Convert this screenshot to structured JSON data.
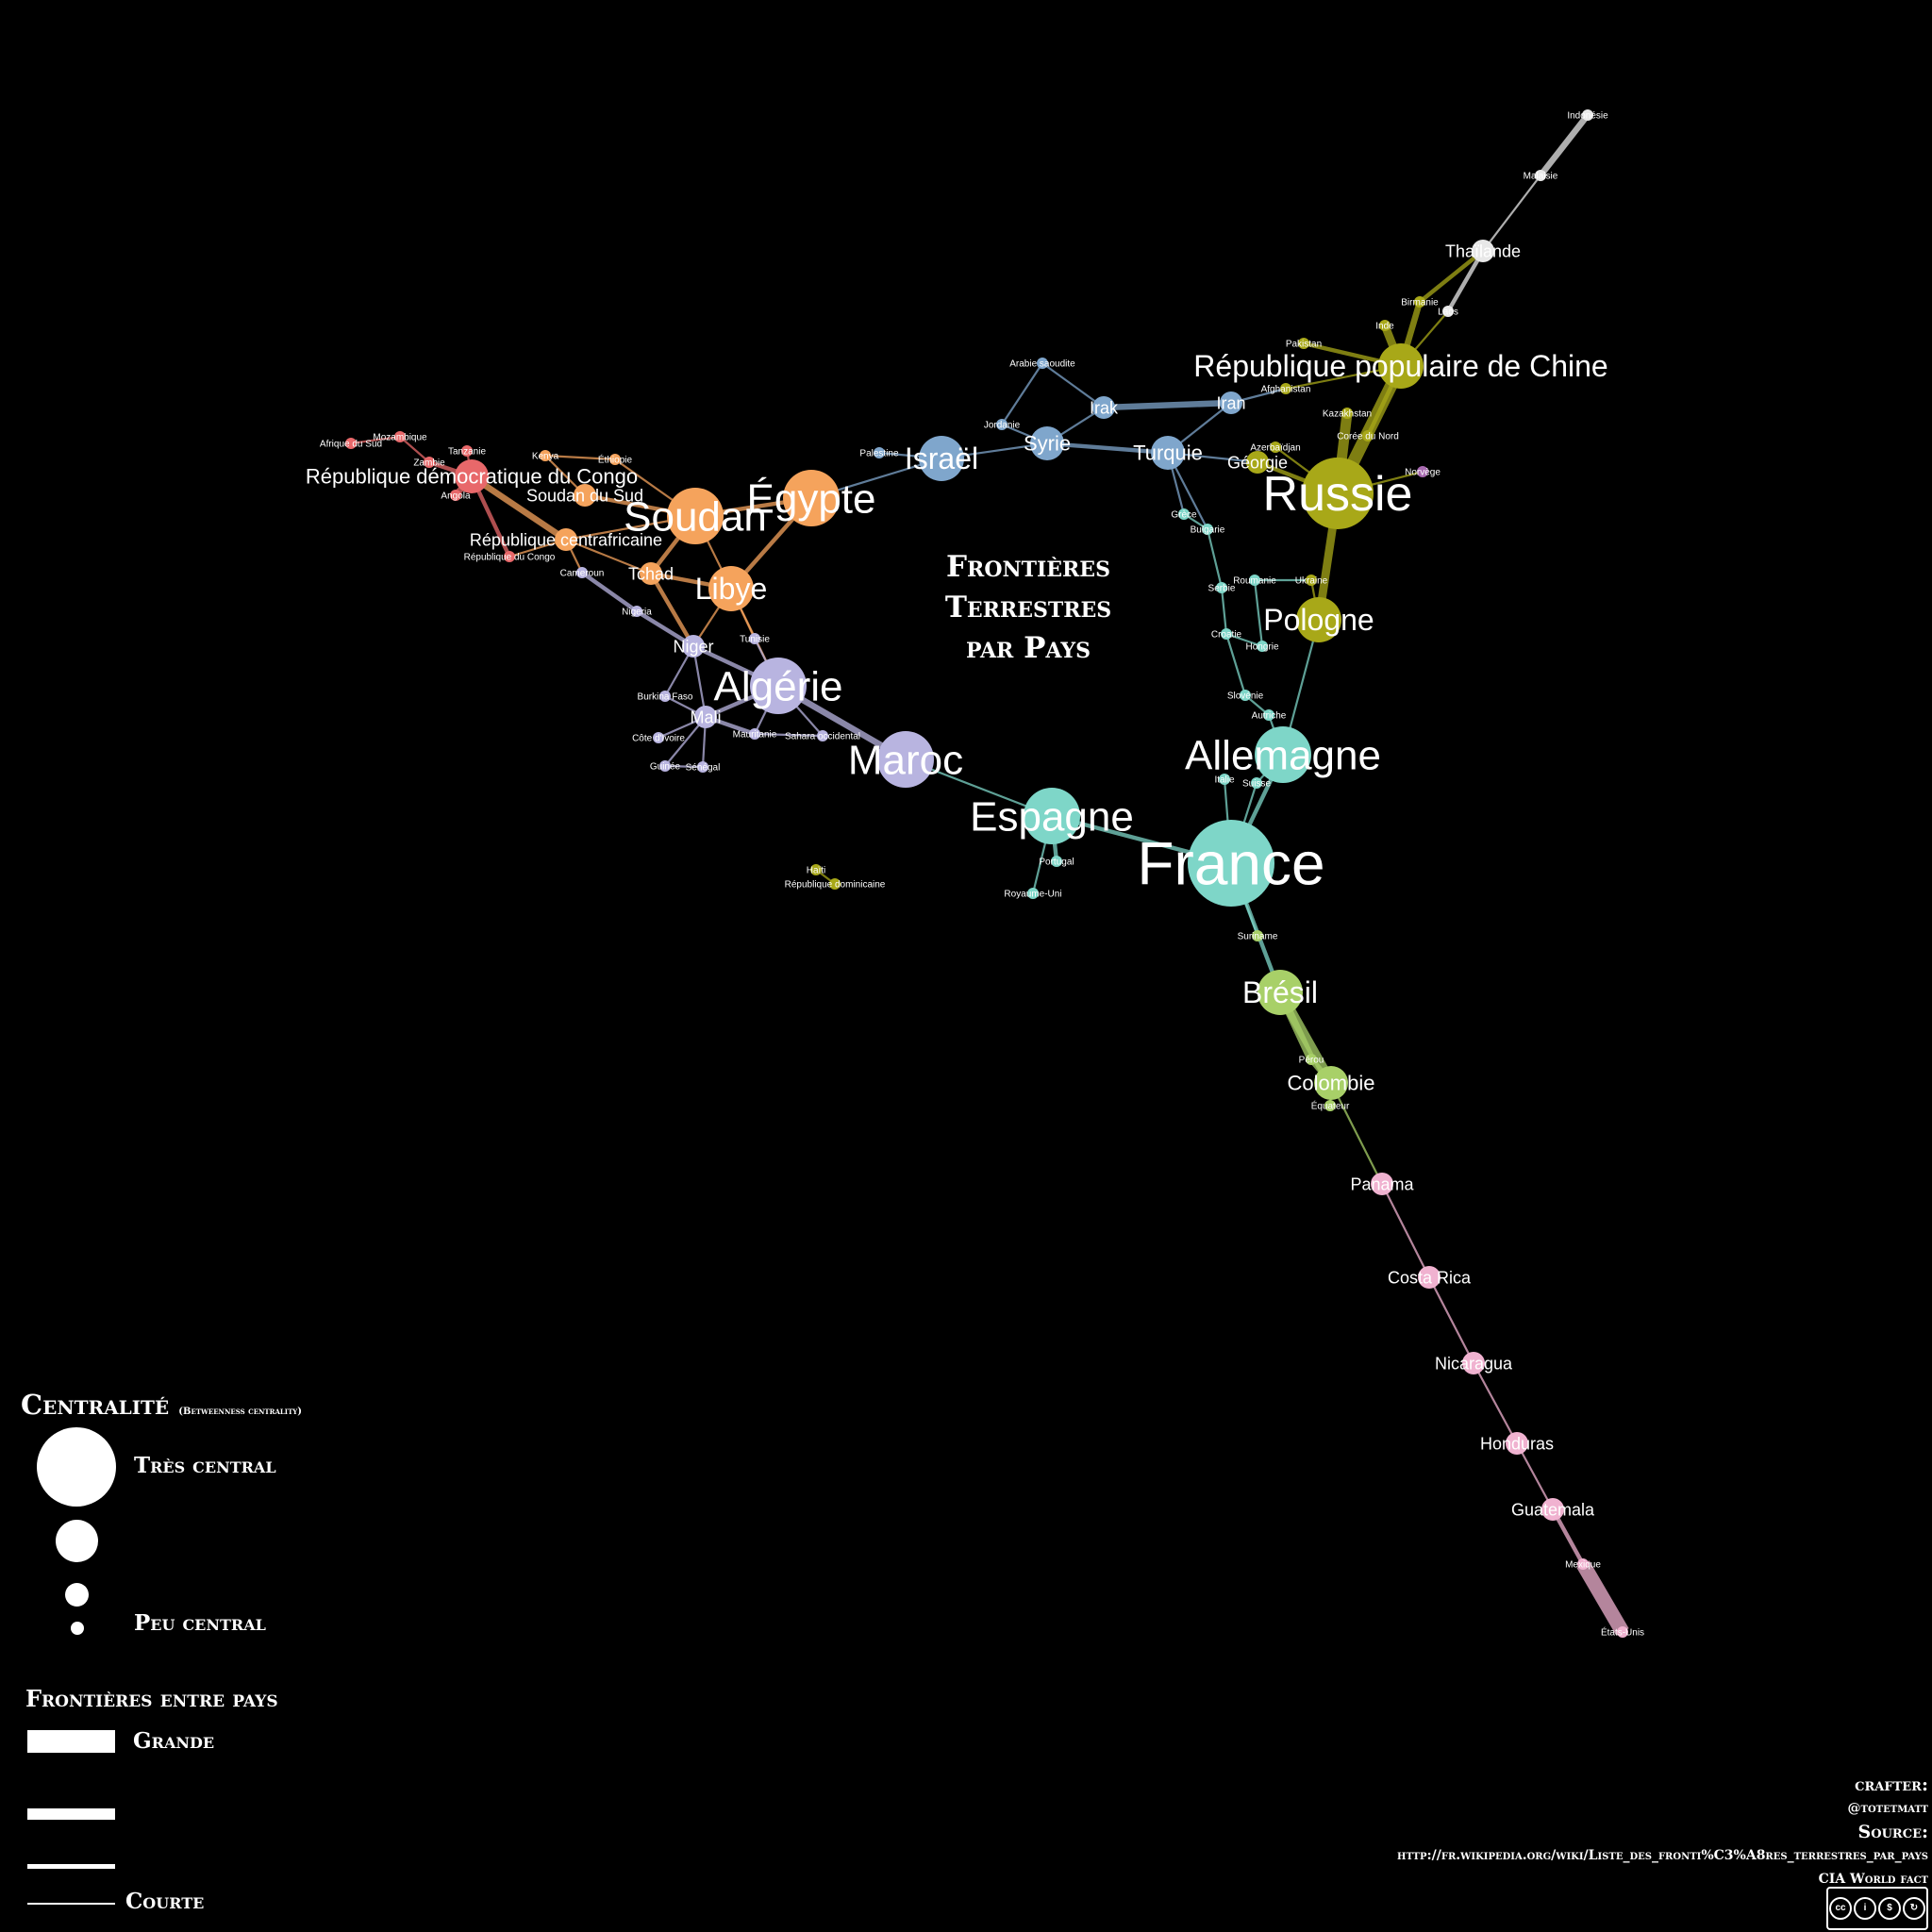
{
  "title": {
    "line1": "Frontières",
    "line2": "Terrestres",
    "line3": "par Pays"
  },
  "legend": {
    "centrality_title": "Centralité",
    "centrality_note": "(Betweenness centrality)",
    "high_label": "Très central",
    "low_label": "Peu central",
    "borders_title": "Frontières entre pays",
    "long_label": "Grande",
    "short_label": "Courte"
  },
  "credits": {
    "crafter_label": "crafter:",
    "crafter": "@totetmatt",
    "source_label": "Source:",
    "source_url": "http://fr.wikipedia.org/wiki/Liste_des_fronti%C3%A8res_terrestres_par_pays",
    "source_2": "CIA World fact",
    "license": "BY NC SA"
  },
  "colors": {
    "background": "#000000",
    "africa_central": "#f5a35c",
    "africa_south": "#e8686a",
    "africa_west": "#b8b4e0",
    "middle_east": "#7fa6cc",
    "eurasia": "#a8a818",
    "europe": "#7ed6c8",
    "south_america": "#a8d068",
    "central_america": "#f0b2d0",
    "south_east_asia": "#e8e8e8",
    "nordic": "#a86ab0"
  },
  "nodes": [
    {
      "id": "France",
      "label": "France",
      "group": "europe",
      "size": 7
    },
    {
      "id": "Espagne",
      "label": "Espagne",
      "group": "europe",
      "size": 5
    },
    {
      "id": "Allemagne",
      "label": "Allemagne",
      "group": "europe",
      "size": 5
    },
    {
      "id": "Russie",
      "label": "Russie",
      "group": "eurasia",
      "size": 6
    },
    {
      "id": "Chine",
      "label": "République populaire de Chine",
      "group": "eurasia",
      "size": 4
    },
    {
      "id": "Pologne",
      "label": "Pologne",
      "group": "eurasia",
      "size": 4
    },
    {
      "id": "Turquie",
      "label": "Turquie",
      "group": "middle_east",
      "size": 3
    },
    {
      "id": "Syrie",
      "label": "Syrie",
      "group": "middle_east",
      "size": 3
    },
    {
      "id": "Israel",
      "label": "Israël",
      "group": "middle_east",
      "size": 4
    },
    {
      "id": "Irak",
      "label": "Irak",
      "group": "middle_east",
      "size": 2
    },
    {
      "id": "Iran",
      "label": "Iran",
      "group": "middle_east",
      "size": 2
    },
    {
      "id": "Arabie",
      "label": "Arabie saoudite",
      "group": "middle_east",
      "size": 1
    },
    {
      "id": "Jordanie",
      "label": "Jordanie",
      "group": "middle_east",
      "size": 1
    },
    {
      "id": "Palestine",
      "label": "Palestine",
      "group": "middle_east",
      "size": 1
    },
    {
      "id": "Egypte",
      "label": "Égypte",
      "group": "africa_central",
      "size": 5
    },
    {
      "id": "Soudan",
      "label": "Soudan",
      "group": "africa_central",
      "size": 5
    },
    {
      "id": "Libye",
      "label": "Libye",
      "group": "africa_central",
      "size": 4
    },
    {
      "id": "Tchad",
      "label": "Tchad",
      "group": "africa_central",
      "size": 2
    },
    {
      "id": "SoudanSud",
      "label": "Soudan du Sud",
      "group": "africa_central",
      "size": 2
    },
    {
      "id": "RCA",
      "label": "République centrafricaine",
      "group": "africa_central",
      "size": 2
    },
    {
      "id": "RDC",
      "label": "République démocratique du Congo",
      "group": "africa_south",
      "size": 3
    },
    {
      "id": "Congo",
      "label": "République du Congo",
      "group": "africa_south",
      "size": 1
    },
    {
      "id": "Tanzanie",
      "label": "Tanzanie",
      "group": "africa_south",
      "size": 1
    },
    {
      "id": "Zambie",
      "label": "Zambie",
      "group": "africa_south",
      "size": 1
    },
    {
      "id": "Mozambique",
      "label": "Mozambique",
      "group": "africa_south",
      "size": 1
    },
    {
      "id": "AfriqueSud",
      "label": "Afrique du Sud",
      "group": "africa_south",
      "size": 1
    },
    {
      "id": "Angola",
      "label": "Angola",
      "group": "africa_south",
      "size": 1
    },
    {
      "id": "Ethiopie",
      "label": "Éthiopie",
      "group": "africa_central",
      "size": 1
    },
    {
      "id": "Kenya",
      "label": "Kenya",
      "group": "africa_central",
      "size": 1
    },
    {
      "id": "Cameroun",
      "label": "Cameroun",
      "group": "africa_west",
      "size": 1
    },
    {
      "id": "Nigeria",
      "label": "Nigeria",
      "group": "africa_west",
      "size": 1
    },
    {
      "id": "Niger",
      "label": "Niger",
      "group": "africa_west",
      "size": 2
    },
    {
      "id": "Algerie",
      "label": "Algérie",
      "group": "africa_west",
      "size": 5
    },
    {
      "id": "Maroc",
      "label": "Maroc",
      "group": "africa_west",
      "size": 5
    },
    {
      "id": "Mali",
      "label": "Mali",
      "group": "africa_west",
      "size": 2
    },
    {
      "id": "Burkina",
      "label": "Burkina Faso",
      "group": "africa_west",
      "size": 1
    },
    {
      "id": "Cote",
      "label": "Côte d'Ivoire",
      "group": "africa_west",
      "size": 1
    },
    {
      "id": "Guinee",
      "label": "Guinée",
      "group": "africa_west",
      "size": 1
    },
    {
      "id": "Senegal",
      "label": "Sénégal",
      "group": "africa_west",
      "size": 1
    },
    {
      "id": "Mauritanie",
      "label": "Mauritanie",
      "group": "africa_west",
      "size": 1
    },
    {
      "id": "Sahara",
      "label": "Sahara occidental",
      "group": "africa_west",
      "size": 1
    },
    {
      "id": "Tunisie",
      "label": "Tunisie",
      "group": "africa_west",
      "size": 1
    },
    {
      "id": "RoyaumeUni",
      "label": "Royaume-Uni",
      "group": "europe",
      "size": 1
    },
    {
      "id": "Portugal",
      "label": "Portugal",
      "group": "europe",
      "size": 1
    },
    {
      "id": "Italie",
      "label": "Italie",
      "group": "europe",
      "size": 1
    },
    {
      "id": "Suisse",
      "label": "Suisse",
      "group": "europe",
      "size": 1
    },
    {
      "id": "Autriche",
      "label": "Autriche",
      "group": "europe",
      "size": 1
    },
    {
      "id": "Slovenie",
      "label": "Slovénie",
      "group": "europe",
      "size": 1
    },
    {
      "id": "Hongrie",
      "label": "Hongrie",
      "group": "europe",
      "size": 1
    },
    {
      "id": "Croatie",
      "label": "Croatie",
      "group": "europe",
      "size": 1
    },
    {
      "id": "Serbie",
      "label": "Serbie",
      "group": "europe",
      "size": 1
    },
    {
      "id": "Roumanie",
      "label": "Roumanie",
      "group": "europe",
      "size": 1
    },
    {
      "id": "Bulgarie",
      "label": "Bulgarie",
      "group": "europe",
      "size": 1
    },
    {
      "id": "Grece",
      "label": "Grèce",
      "group": "europe",
      "size": 1
    },
    {
      "id": "Ukraine",
      "label": "Ukraine",
      "group": "eurasia",
      "size": 1
    },
    {
      "id": "Georgie",
      "label": "Géorgie",
      "group": "eurasia",
      "size": 2
    },
    {
      "id": "Azerbaidjan",
      "label": "Azerbaïdjan",
      "group": "eurasia",
      "size": 1
    },
    {
      "id": "Kazakhstan",
      "label": "Kazakhstan",
      "group": "eurasia",
      "size": 1
    },
    {
      "id": "Afghanistan",
      "label": "Afghanistan",
      "group": "eurasia",
      "size": 1
    },
    {
      "id": "Pakistan",
      "label": "Pakistan",
      "group": "eurasia",
      "size": 1
    },
    {
      "id": "Inde",
      "label": "Inde",
      "group": "eurasia",
      "size": 1
    },
    {
      "id": "Birmanie",
      "label": "Birmanie",
      "group": "eurasia",
      "size": 1
    },
    {
      "id": "CoreeNord",
      "label": "Corée du Nord",
      "group": "eurasia",
      "size": 1
    },
    {
      "id": "Laos",
      "label": "Laos",
      "group": "south_east_asia",
      "size": 1
    },
    {
      "id": "Thailande",
      "label": "Thaïlande",
      "group": "south_east_asia",
      "size": 2
    },
    {
      "id": "Malaisie",
      "label": "Malaisie",
      "group": "south_east_asia",
      "size": 1
    },
    {
      "id": "Indonesie",
      "label": "Indonésie",
      "group": "south_east_asia",
      "size": 1
    },
    {
      "id": "Norvege",
      "label": "Norvège",
      "group": "nordic",
      "size": 1
    },
    {
      "id": "Bresil",
      "label": "Brésil",
      "group": "south_america",
      "size": 4
    },
    {
      "id": "Colombie",
      "label": "Colombie",
      "group": "south_america",
      "size": 3
    },
    {
      "id": "Perou",
      "label": "Pérou",
      "group": "south_america",
      "size": 1
    },
    {
      "id": "Suriname",
      "label": "Suriname",
      "group": "south_america",
      "size": 1
    },
    {
      "id": "Equateur",
      "label": "Équateur",
      "group": "south_america",
      "size": 1
    },
    {
      "id": "Panama",
      "label": "Panama",
      "group": "central_america",
      "size": 2
    },
    {
      "id": "CostaRica",
      "label": "Costa Rica",
      "group": "central_america",
      "size": 2
    },
    {
      "id": "Nicaragua",
      "label": "Nicaragua",
      "group": "central_america",
      "size": 2
    },
    {
      "id": "Honduras",
      "label": "Honduras",
      "group": "central_america",
      "size": 2
    },
    {
      "id": "Guatemala",
      "label": "Guatemala",
      "group": "central_america",
      "size": 2
    },
    {
      "id": "Mexique",
      "label": "Mexique",
      "group": "central_america",
      "size": 1
    },
    {
      "id": "EtatsUnis",
      "label": "États-Unis",
      "group": "central_america",
      "size": 1
    },
    {
      "id": "Haiti",
      "label": "Haïti",
      "group": "eurasia",
      "size": 1
    },
    {
      "id": "RepDom",
      "label": "République dominicaine",
      "group": "eurasia",
      "size": 1
    }
  ],
  "edges": [
    [
      "France",
      "Espagne",
      2
    ],
    [
      "France",
      "Allemagne",
      2
    ],
    [
      "France",
      "Bresil",
      2
    ],
    [
      "France",
      "Suriname",
      1
    ],
    [
      "France",
      "Italie",
      1
    ],
    [
      "France",
      "Suisse",
      1
    ],
    [
      "Espagne",
      "Portugal",
      2
    ],
    [
      "Espagne",
      "Maroc",
      1
    ],
    [
      "Allemagne",
      "Pologne",
      1
    ],
    [
      "Allemagne",
      "Autriche",
      1
    ],
    [
      "Allemagne",
      "Suisse",
      1
    ],
    [
      "Pologne",
      "Russie",
      4
    ],
    [
      "Pologne",
      "Ukraine",
      1
    ],
    [
      "Russie",
      "Chine",
      6
    ],
    [
      "Russie",
      "Kazakhstan",
      5
    ],
    [
      "Russie",
      "Georgie",
      2
    ],
    [
      "Russie",
      "Azerbaidjan",
      1
    ],
    [
      "Russie",
      "Norvege",
      1
    ],
    [
      "Chine",
      "Inde",
      4
    ],
    [
      "Chine",
      "Pakistan",
      2
    ],
    [
      "Chine",
      "Birmanie",
      3
    ],
    [
      "Chine",
      "Laos",
      1
    ],
    [
      "Chine",
      "Afghanistan",
      1
    ],
    [
      "Chine",
      "CoreeNord",
      2
    ],
    [
      "Birmanie",
      "Thailande",
      2
    ],
    [
      "Laos",
      "Thailande",
      2
    ],
    [
      "Thailande",
      "Malaisie",
      1
    ],
    [
      "Malaisie",
      "Indonesie",
      3
    ],
    [
      "Turquie",
      "Syrie",
      2
    ],
    [
      "Turquie",
      "Iran",
      1
    ],
    [
      "Turquie",
      "Georgie",
      1
    ],
    [
      "Turquie",
      "Grece",
      1
    ],
    [
      "Turquie",
      "Bulgarie",
      1
    ],
    [
      "Syrie",
      "Irak",
      1
    ],
    [
      "Syrie",
      "Jordanie",
      1
    ],
    [
      "Syrie",
      "Israel",
      1
    ],
    [
      "Irak",
      "Iran",
      3
    ],
    [
      "Irak",
      "Arabie",
      1
    ],
    [
      "Arabie",
      "Jordanie",
      1
    ],
    [
      "Israel",
      "Palestine",
      1
    ],
    [
      "Israel",
      "Egypte",
      1
    ],
    [
      "Iran",
      "Afghanistan",
      1
    ],
    [
      "Egypte",
      "Soudan",
      2
    ],
    [
      "Egypte",
      "Libye",
      2
    ],
    [
      "Soudan",
      "Libye",
      1
    ],
    [
      "Soudan",
      "Tchad",
      2
    ],
    [
      "Soudan",
      "SoudanSud",
      2
    ],
    [
      "Soudan",
      "RCA",
      1
    ],
    [
      "Soudan",
      "Ethiopie",
      1
    ],
    [
      "Libye",
      "Tchad",
      2
    ],
    [
      "Libye",
      "Algerie",
      1
    ],
    [
      "Libye",
      "Niger",
      1
    ],
    [
      "Libye",
      "Tunisie",
      1
    ],
    [
      "RCA",
      "RDC",
      3
    ],
    [
      "RCA",
      "Tchad",
      1
    ],
    [
      "RCA",
      "Cameroun",
      1
    ],
    [
      "RCA",
      "Congo",
      1
    ],
    [
      "RDC",
      "Zambie",
      2
    ],
    [
      "RDC",
      "Tanzanie",
      1
    ],
    [
      "RDC",
      "Angola",
      3
    ],
    [
      "RDC",
      "Congo",
      2
    ],
    [
      "Zambie",
      "Mozambique",
      1
    ],
    [
      "Mozambique",
      "AfriqueSud",
      1
    ],
    [
      "SoudanSud",
      "Kenya",
      1
    ],
    [
      "Kenya",
      "Ethiopie",
      1
    ],
    [
      "Cameroun",
      "Nigeria",
      2
    ],
    [
      "Tchad",
      "Niger",
      2
    ],
    [
      "Niger",
      "Nigeria",
      2
    ],
    [
      "Niger",
      "Algerie",
      2
    ],
    [
      "Niger",
      "Mali",
      1
    ],
    [
      "Niger",
      "Burkina",
      1
    ],
    [
      "Algerie",
      "Maroc",
      3
    ],
    [
      "Algerie",
      "Mali",
      2
    ],
    [
      "Algerie",
      "Mauritanie",
      1
    ],
    [
      "Algerie",
      "Sahara",
      1
    ],
    [
      "Algerie",
      "Tunisie",
      1
    ],
    [
      "Mali",
      "Burkina",
      1
    ],
    [
      "Mali",
      "Cote",
      1
    ],
    [
      "Mali",
      "Guinee",
      1
    ],
    [
      "Mali",
      "Senegal",
      1
    ],
    [
      "Mali",
      "Mauritanie",
      2
    ],
    [
      "Mauritanie",
      "Sahara",
      1
    ],
    [
      "Guinee",
      "Senegal",
      1
    ],
    [
      "Autriche",
      "Slovenie",
      1
    ],
    [
      "Slovenie",
      "Croatie",
      1
    ],
    [
      "Croatie",
      "Hongrie",
      1
    ],
    [
      "Hongrie",
      "Roumanie",
      1
    ],
    [
      "Roumanie",
      "Ukraine",
      1
    ],
    [
      "Serbie",
      "Bulgarie",
      1
    ],
    [
      "Serbie",
      "Croatie",
      1
    ],
    [
      "Bulgarie",
      "Grece",
      1
    ],
    [
      "RoyaumeUni",
      "Espagne",
      1
    ],
    [
      "Bresil",
      "Colombie",
      5
    ],
    [
      "Bresil",
      "Perou",
      4
    ],
    [
      "Colombie",
      "Perou",
      3
    ],
    [
      "Colombie",
      "Equateur",
      1
    ],
    [
      "Colombie",
      "Panama",
      1
    ],
    [
      "Panama",
      "CostaRica",
      1
    ],
    [
      "CostaRica",
      "Nicaragua",
      1
    ],
    [
      "Nicaragua",
      "Honduras",
      1
    ],
    [
      "Honduras",
      "Guatemala",
      1
    ],
    [
      "Guatemala",
      "Mexique",
      2
    ],
    [
      "Mexique",
      "EtatsUnis",
      7
    ],
    [
      "Haiti",
      "RepDom",
      1
    ]
  ]
}
